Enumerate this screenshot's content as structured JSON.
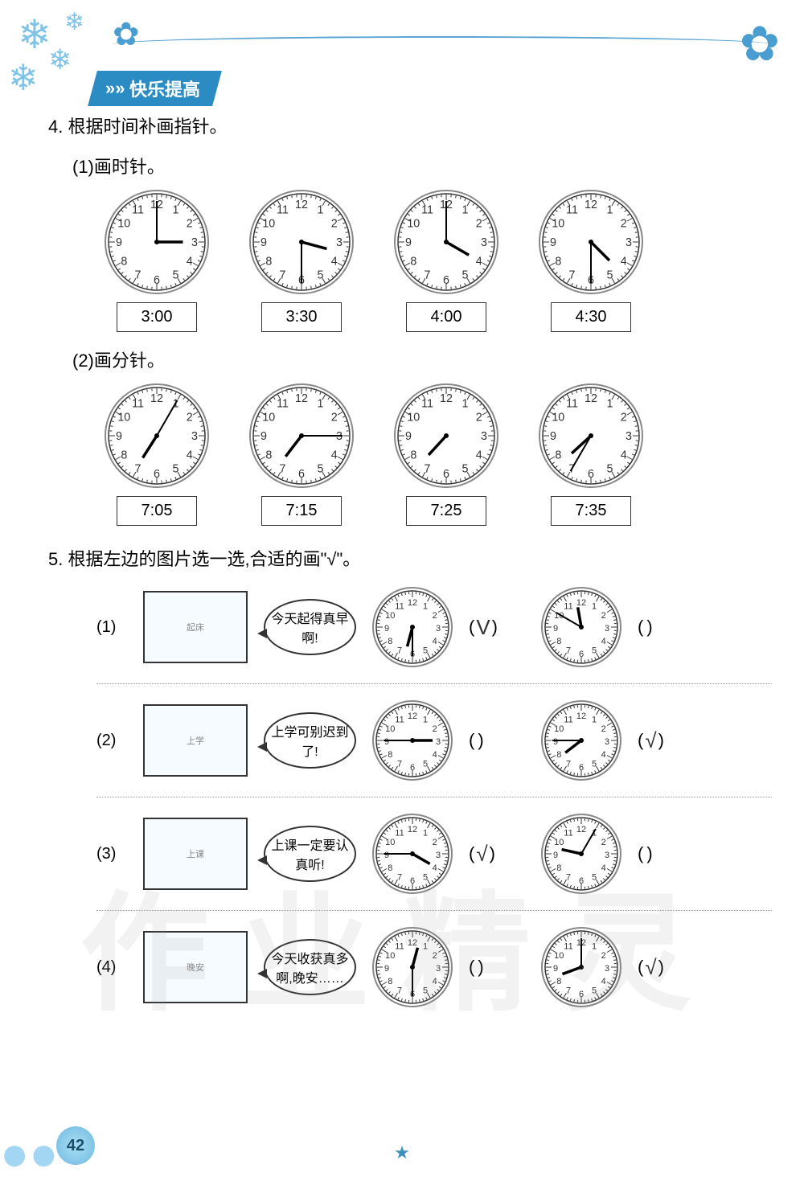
{
  "banner": {
    "arrows": "»»",
    "text": "快乐提高"
  },
  "page_number": "42",
  "watermark": "作业精灵",
  "q4": {
    "title": "4. 根据时间补画指针。",
    "sub1_title": "(1)画时针。",
    "sub2_title": "(2)画分针。",
    "row1": [
      {
        "time": "3:00",
        "hour_angle": 90,
        "minute_angle": 0,
        "show_hour": true,
        "show_minute": true
      },
      {
        "time": "3:30",
        "hour_angle": 105,
        "minute_angle": 180,
        "show_hour": true,
        "show_minute": true
      },
      {
        "time": "4:00",
        "hour_angle": 120,
        "minute_angle": 0,
        "show_hour": true,
        "show_minute": true
      },
      {
        "time": "4:30",
        "hour_angle": 135,
        "minute_angle": 180,
        "show_hour": true,
        "show_minute": true
      }
    ],
    "row2": [
      {
        "time": "7:05",
        "hour_angle": 212.5,
        "minute_angle": 30,
        "show_hour": true,
        "show_minute": true
      },
      {
        "time": "7:15",
        "hour_angle": 217.5,
        "minute_angle": 90,
        "show_hour": true,
        "show_minute": true
      },
      {
        "time": "7:25",
        "hour_angle": 222.5,
        "minute_angle": 150,
        "show_hour": true,
        "show_minute": false
      },
      {
        "time": "7:35",
        "hour_angle": 227.5,
        "minute_angle": 210,
        "show_hour": true,
        "show_minute": true
      }
    ]
  },
  "q5": {
    "title": "5. 根据左边的图片选一选,合适的画\"√\"。",
    "rows": [
      {
        "num": "(1)",
        "pic_desc": "起床",
        "speech": "今天起得真早啊!",
        "clockA": {
          "hour_angle": 195,
          "minute_angle": 180
        },
        "clockB": {
          "hour_angle": 350,
          "minute_angle": 300
        },
        "answerA": "V",
        "answerB": ""
      },
      {
        "num": "(2)",
        "pic_desc": "上学",
        "speech": "上学可别迟到了!",
        "clockA": {
          "hour_angle": 90,
          "minute_angle": 270
        },
        "clockB": {
          "hour_angle": 232.5,
          "minute_angle": 270
        },
        "answerA": "",
        "answerB": "√"
      },
      {
        "num": "(3)",
        "pic_desc": "上课",
        "speech": "上课一定要认真听!",
        "clockA": {
          "hour_angle": 120,
          "minute_angle": 270
        },
        "clockB": {
          "hour_angle": 282.5,
          "minute_angle": 30
        },
        "answerA": "√",
        "answerB": ""
      },
      {
        "num": "(4)",
        "pic_desc": "晚安",
        "speech": "今天收获真多啊,晚安……",
        "clockA": {
          "hour_angle": 15,
          "minute_angle": 180
        },
        "clockB": {
          "hour_angle": 250,
          "minute_angle": 0
        },
        "answerA": "",
        "answerB": "√"
      }
    ]
  },
  "clock_style": {
    "face_stroke": "#333333",
    "face_fill": "#ffffff",
    "number_color": "#333333",
    "hour_hand_color": "#000000",
    "minute_hand_color": "#000000",
    "tick_color": "#333333",
    "outer_ring": "#888888"
  },
  "colors": {
    "banner_bg": "#2b8cc4",
    "banner_text": "#ffffff",
    "decoration": "#7fc4e8",
    "text": "#222222"
  }
}
